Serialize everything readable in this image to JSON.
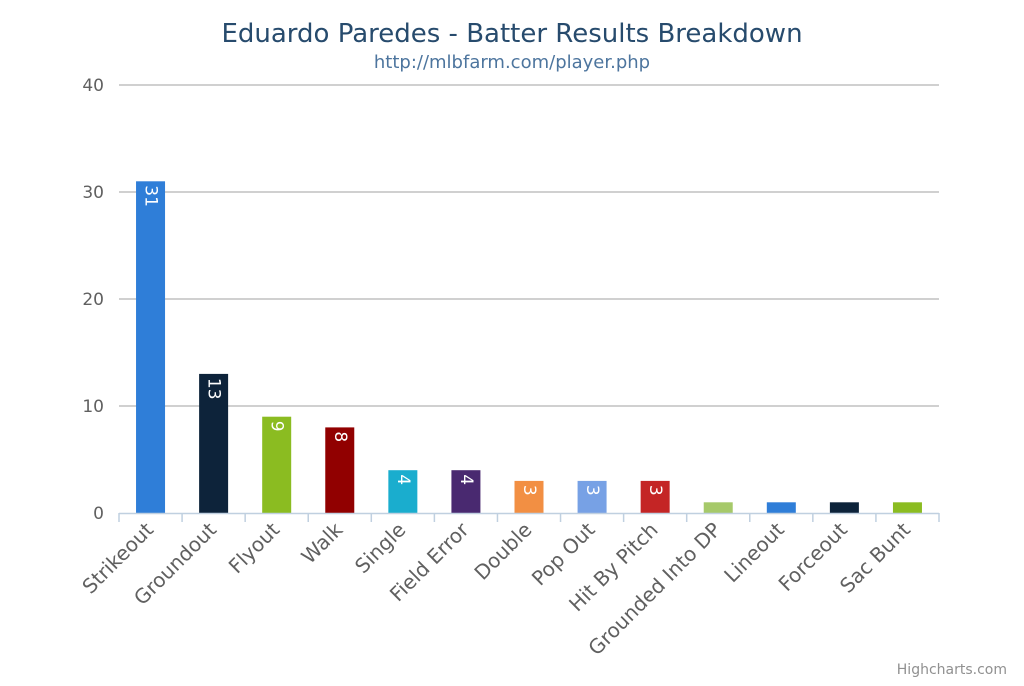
{
  "chart_data": {
    "type": "bar",
    "title": "Eduardo Paredes - Batter Results Breakdown",
    "subtitle": "http://mlbfarm.com/player.php",
    "categories": [
      "Strikeout",
      "Groundout",
      "Flyout",
      "Walk",
      "Single",
      "Field Error",
      "Double",
      "Pop Out",
      "Hit By Pitch",
      "Grounded Into DP",
      "Lineout",
      "Forceout",
      "Sac Bunt"
    ],
    "values": [
      31,
      13,
      9,
      8,
      4,
      4,
      3,
      3,
      3,
      1,
      1,
      1,
      1
    ],
    "colors": [
      "#2f7ed8",
      "#0d233a",
      "#8bbc21",
      "#910000",
      "#1aadce",
      "#492970",
      "#f28f43",
      "#77a1e5",
      "#c42525",
      "#a6c96a",
      "#2f7ed8",
      "#0d233a",
      "#8bbc21"
    ],
    "data_labels_shown_min": 3,
    "ylim": [
      0,
      40
    ],
    "yticks": [
      0,
      10,
      20,
      30,
      40
    ],
    "grid": true,
    "legend": "none",
    "credits": "Highcharts.com"
  }
}
